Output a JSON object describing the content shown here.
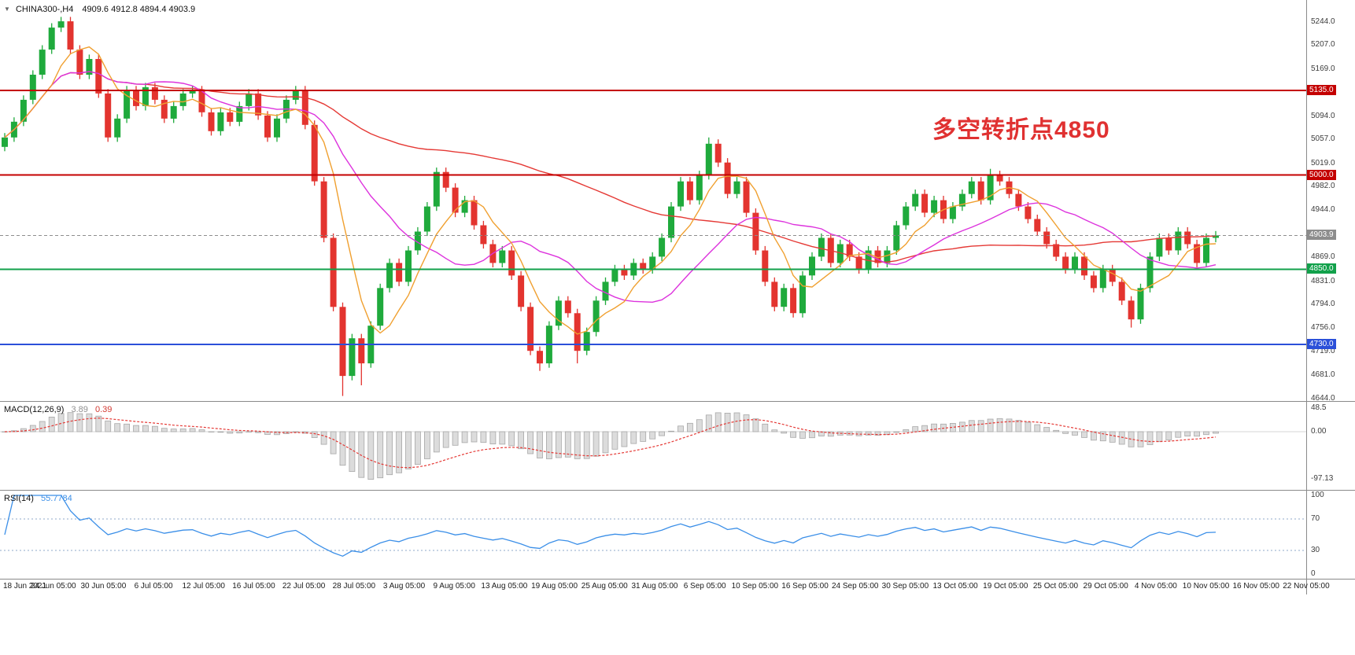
{
  "window": {
    "bg": "#ffffff"
  },
  "symbol_bar": {
    "dropdown": "▼",
    "title": "CHINA300-,H4",
    "ohlc": "4909.6 4912.8 4894.4 4903.9"
  },
  "annotation": {
    "text": "多空转折点4850",
    "color": "#e03131"
  },
  "indicator_labels": {
    "macd_name": "MACD(12,26,9)",
    "macd_main": "3.89",
    "macd_signal": "0.39",
    "rsi_name": "RSI(14)",
    "rsi_value": "55.7784"
  },
  "chart_data": [
    {
      "type": "candlestick",
      "title": "CHINA300-,H4",
      "timeframe": "H4",
      "current_bar": {
        "open": 4909.6,
        "high": 4912.8,
        "low": 4894.4,
        "close": 4903.9
      },
      "ylim": [
        4640,
        5279
      ],
      "y_ticks": [
        {
          "v": 5244,
          "t": "5244.0"
        },
        {
          "v": 5207,
          "t": "5207.0"
        },
        {
          "v": 5169,
          "t": "5169.0"
        },
        {
          "v": 5132,
          "t": "5132.0"
        },
        {
          "v": 5094,
          "t": "5094.0"
        },
        {
          "v": 5057,
          "t": "5057.0"
        },
        {
          "v": 5019,
          "t": "5019.0"
        },
        {
          "v": 4982,
          "t": "4982.0"
        },
        {
          "v": 4944,
          "t": "4944.0"
        },
        {
          "v": 4907,
          "t": "4907.0"
        },
        {
          "v": 4869,
          "t": "4869.0"
        },
        {
          "v": 4831,
          "t": "4831.0"
        },
        {
          "v": 4794,
          "t": "4794.0"
        },
        {
          "v": 4756,
          "t": "4756.0"
        },
        {
          "v": 4719,
          "t": "4719.0"
        },
        {
          "v": 4681,
          "t": "4681.0"
        },
        {
          "v": 4644,
          "t": "4644.0"
        }
      ],
      "x_labels": [
        "18 Jun 2021",
        "24 Jun 05:00",
        "30 Jun 05:00",
        "6 Jul 05:00",
        "12 Jul 05:00",
        "16 Jul 05:00",
        "22 Jul 05:00",
        "28 Jul 05:00",
        "3 Aug 05:00",
        "9 Aug 05:00",
        "13 Aug 05:00",
        "19 Aug 05:00",
        "25 Aug 05:00",
        "31 Aug 05:00",
        "6 Sep 05:00",
        "10 Sep 05:00",
        "16 Sep 05:00",
        "24 Sep 05:00",
        "30 Sep 05:00",
        "13 Oct 05:00",
        "19 Oct 05:00",
        "25 Oct 05:00",
        "29 Oct 05:00",
        "4 Nov 05:00",
        "10 Nov 05:00",
        "16 Nov 05:00",
        "22 Nov 05:00"
      ],
      "first_open": 5045,
      "closes": [
        5060,
        5085,
        5120,
        5160,
        5200,
        5235,
        5245,
        5200,
        5160,
        5185,
        5130,
        5060,
        5090,
        5135,
        5110,
        5140,
        5120,
        5090,
        5110,
        5130,
        5135,
        5100,
        5070,
        5100,
        5085,
        5110,
        5130,
        5095,
        5060,
        5090,
        5120,
        5135,
        5080,
        4990,
        4900,
        4790,
        4680,
        4740,
        4700,
        4760,
        4820,
        4860,
        4830,
        4880,
        4910,
        4950,
        5005,
        4980,
        4940,
        4960,
        4920,
        4890,
        4860,
        4880,
        4840,
        4790,
        4720,
        4700,
        4760,
        4800,
        4780,
        4720,
        4750,
        4800,
        4830,
        4850,
        4840,
        4860,
        4850,
        4870,
        4900,
        4950,
        4990,
        4960,
        5000,
        5050,
        5020,
        4970,
        4990,
        4940,
        4880,
        4830,
        4790,
        4820,
        4780,
        4840,
        4870,
        4900,
        4860,
        4890,
        4870,
        4850,
        4880,
        4860,
        4880,
        4920,
        4950,
        4970,
        4940,
        4960,
        4930,
        4950,
        4970,
        4990,
        4960,
        5000,
        4990,
        4970,
        4950,
        4930,
        4910,
        4890,
        4870,
        4850,
        4870,
        4840,
        4820,
        4850,
        4830,
        4800,
        4770,
        4820,
        4870,
        4900,
        4880,
        4910,
        4890,
        4860,
        4900,
        4903.9
      ],
      "wick_overrides": {
        "6": {
          "high": 5252
        },
        "36": {
          "low": 4648
        },
        "38": {
          "low": 4665
        },
        "57": {
          "low": 4688
        },
        "61": {
          "low": 4700
        },
        "75": {
          "high": 5060
        },
        "105": {
          "high": 5010
        },
        "120": {
          "low": 4757
        }
      },
      "up_color": "#1faa3c",
      "down_color": "#e3342f",
      "moving_averages": [
        {
          "name": "slow-ma",
          "period": 60,
          "color": "#e53935"
        },
        {
          "name": "mid-ma",
          "period": 16,
          "color": "#dd33dd"
        },
        {
          "name": "fast-ma",
          "period": 6,
          "color": "#f0a030"
        }
      ],
      "levels": [
        {
          "value": 5135.0,
          "label": "5135.0",
          "color": "#c40000",
          "style": "solid",
          "width": 2
        },
        {
          "value": 5000.0,
          "label": "5000.0",
          "color": "#c40000",
          "style": "solid",
          "width": 2
        },
        {
          "value": 4903.9,
          "label": "4903.9",
          "color": "#8d8d8d",
          "style": "dash",
          "width": 1
        },
        {
          "value": 4850.0,
          "label": "4850.0",
          "color": "#12a14b",
          "style": "solid",
          "width": 2
        },
        {
          "value": 4730.0,
          "label": "4730.0",
          "color": "#2b50d9",
          "style": "solid",
          "width": 2
        }
      ],
      "last_price": 4903.9
    },
    {
      "type": "bar",
      "name": "MACD",
      "fast": 12,
      "slow": 26,
      "signal": 9,
      "current_main": 3.89,
      "current_signal": 0.39,
      "ticks": [
        {
          "v": 48.5,
          "t": "48.5"
        },
        {
          "v": 0,
          "t": "0.00"
        },
        {
          "v": -97.13,
          "t": "-97.13"
        }
      ],
      "ylim": [
        -119,
        61
      ],
      "hist_color": "#dcdcdc",
      "hist_stroke": "#a8a8a8",
      "signal_color": "#e53935"
    },
    {
      "type": "line",
      "name": "RSI",
      "period": 14,
      "current": 55.7784,
      "ticks": [
        {
          "v": 100,
          "t": "100"
        },
        {
          "v": 70,
          "t": "70"
        },
        {
          "v": 30,
          "t": "30"
        },
        {
          "v": 0,
          "t": "0"
        }
      ],
      "levels": [
        70,
        30
      ],
      "ylim": [
        0,
        100
      ],
      "color": "#3b8fe8",
      "level_color": "#8fa8c8"
    }
  ]
}
